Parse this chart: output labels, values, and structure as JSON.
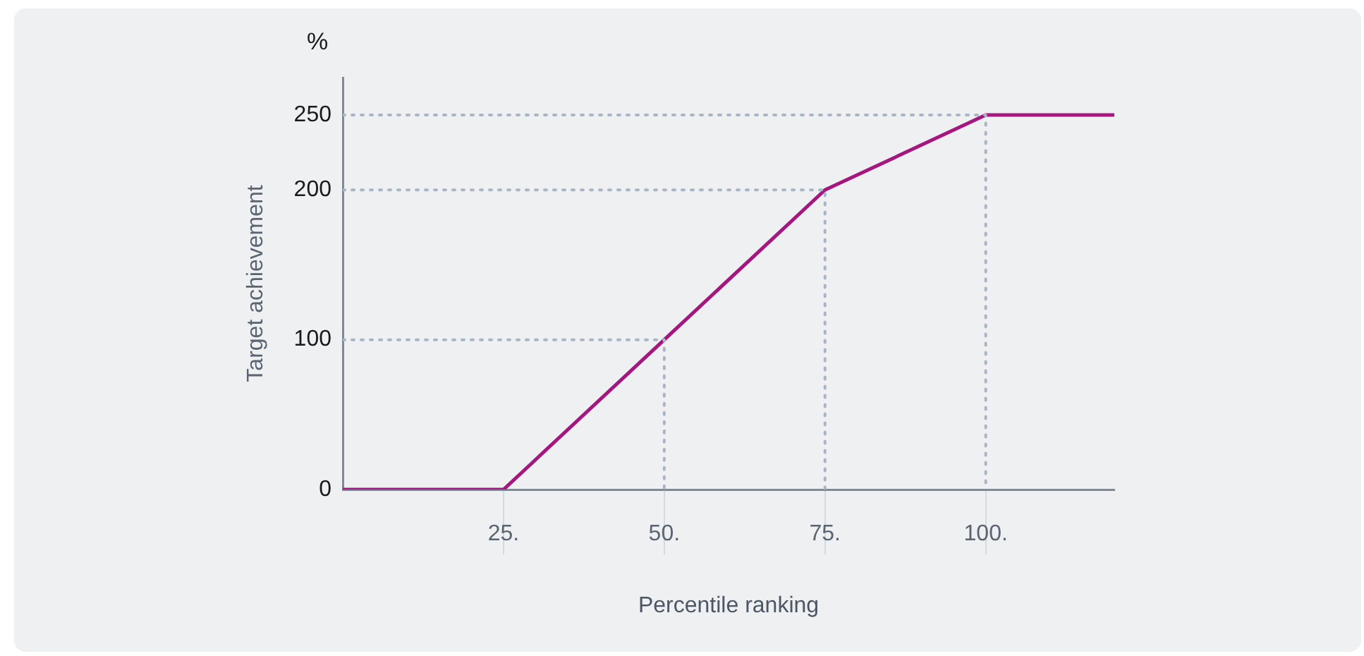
{
  "chart_data": {
    "type": "line",
    "xlabel": "Percentile ranking",
    "ylabel": "Target achievement",
    "annotations": [
      "%"
    ],
    "xlim": [
      0,
      120
    ],
    "xticks": [
      {
        "value": 25,
        "label": "25."
      },
      {
        "value": 50,
        "label": "50."
      },
      {
        "value": 75,
        "label": "75."
      },
      {
        "value": 100,
        "label": "100."
      }
    ],
    "ylim": [
      0,
      275
    ],
    "yticks": [
      0,
      100,
      200,
      250
    ],
    "marker": "none",
    "series": [
      {
        "x": [
          0,
          50,
          50
        ],
        "values": [
          100,
          100,
          0
        ],
        "color": "#a9b5c4",
        "line_style": "dotted"
      },
      {
        "x": [
          0,
          75,
          75
        ],
        "values": [
          200,
          200,
          0
        ],
        "color": "#a9b5c4",
        "line_style": "dotted"
      },
      {
        "x": [
          0,
          100,
          100
        ],
        "values": [
          250,
          250,
          0
        ],
        "color": "#a9b5c4",
        "line_style": "dotted"
      },
      {
        "x": [
          0,
          25,
          50,
          75,
          100,
          120
        ],
        "values": [
          0,
          0,
          100,
          200,
          250,
          250
        ],
        "color": "#a3177f",
        "line_style": "solid"
      }
    ]
  }
}
